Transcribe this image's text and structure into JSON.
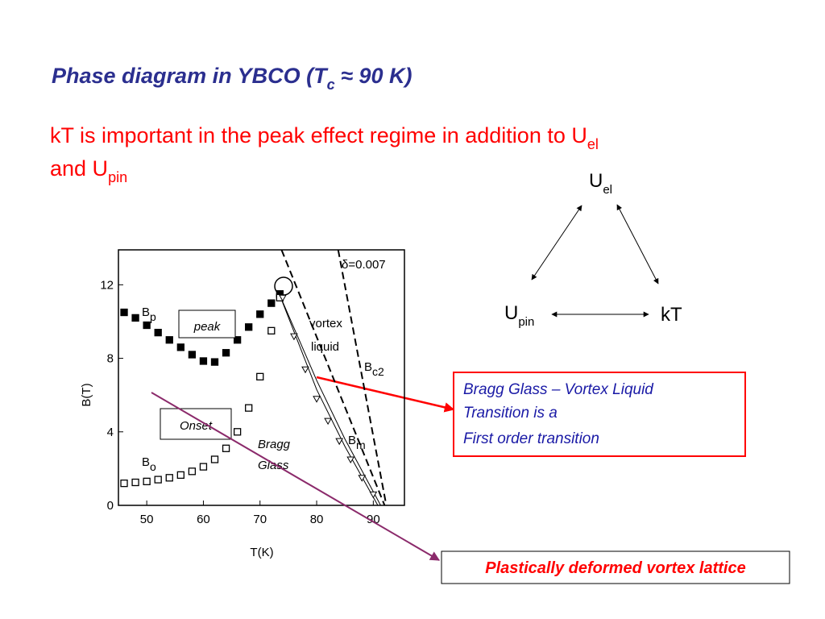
{
  "title": [
    "Phase diagram in YBCO (T",
    "c",
    " ≈ 90 K)"
  ],
  "subtitle": {
    "line1": [
      "kT is important in the peak effect regime in addition to U",
      "el"
    ],
    "line2": [
      "and U",
      "pin"
    ]
  },
  "triangle": {
    "top": [
      "U",
      "el"
    ],
    "left": [
      "U",
      "pin"
    ],
    "right": "kT"
  },
  "callout": {
    "lines": [
      "Bragg Glass – Vortex Liquid",
      "Transition is a",
      "First order transition"
    ]
  },
  "bottom_box": "Plastically deformed vortex lattice",
  "figure": {
    "xlabel": "T(K)",
    "ylabel": "B(T)",
    "xlim": [
      45,
      95.5
    ],
    "ylim": [
      0,
      13.9
    ],
    "xticks": [
      50,
      60,
      70,
      80,
      90
    ],
    "yticks": [
      0,
      4,
      8,
      12
    ],
    "labels": {
      "delta": "δ=0.007",
      "vortex": "vortex",
      "liquid": "liquid",
      "bp": [
        "B",
        "p"
      ],
      "bo": [
        "B",
        "o"
      ],
      "bc2": [
        "B",
        "c2"
      ],
      "bm": [
        "B",
        "m"
      ],
      "bragg": "Bragg",
      "glass": "Glass",
      "peak": "peak",
      "onset": "Onset"
    },
    "series": [
      {
        "marker": "filled-square",
        "color": "#000000",
        "x": [
          46,
          48,
          50,
          52,
          54,
          56,
          58,
          60,
          62,
          64,
          66,
          68,
          70,
          72,
          73.5
        ],
        "values": [
          10.5,
          10.2,
          9.8,
          9.4,
          9.0,
          8.6,
          8.2,
          7.85,
          7.8,
          8.3,
          9.0,
          9.7,
          10.4,
          11.0,
          11.5
        ]
      },
      {
        "marker": "open-square",
        "color": "#000000",
        "x": [
          46,
          48,
          50,
          52,
          54,
          56,
          58,
          60,
          62,
          64,
          66,
          68,
          70,
          72,
          73.5
        ],
        "values": [
          1.2,
          1.25,
          1.3,
          1.4,
          1.5,
          1.65,
          1.85,
          2.1,
          2.5,
          3.1,
          4.0,
          5.3,
          7.0,
          9.5,
          11.3
        ]
      },
      {
        "marker": "triangle",
        "color": "#000000",
        "x": [
          74,
          76,
          78,
          80,
          82,
          84,
          86,
          88,
          90
        ],
        "values": [
          11.3,
          9.2,
          7.4,
          5.8,
          4.6,
          3.5,
          2.5,
          1.5,
          0.6
        ]
      }
    ],
    "lines": [
      {
        "dash": true,
        "x": [
          73.8,
          92
        ],
        "values": [
          13.9,
          0
        ]
      },
      {
        "dash": true,
        "x": [
          83.8,
          92.3
        ],
        "values": [
          13.9,
          0
        ]
      },
      {
        "dash": false,
        "x": [
          73.4,
          80,
          85,
          90.8
        ],
        "values": [
          11.5,
          6.3,
          3.2,
          0
        ]
      },
      {
        "dash": false,
        "x": [
          73.4,
          80,
          85,
          91.3
        ],
        "values": [
          11.5,
          6.8,
          3.6,
          0
        ]
      }
    ]
  }
}
